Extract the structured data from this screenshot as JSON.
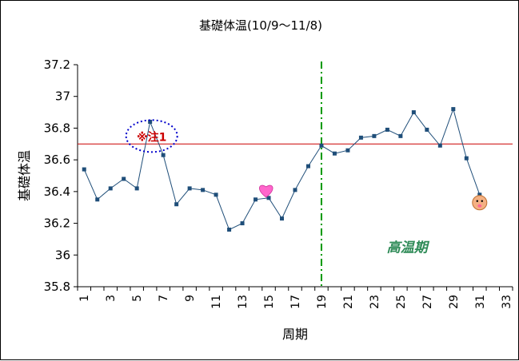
{
  "chart_data": {
    "type": "line",
    "title": "基礎体温(10/9〜11/8)",
    "xlabel": "周期",
    "ylabel": "基礎体温",
    "ylim": [
      35.8,
      37.2
    ],
    "y_ticks": [
      "35.8",
      "36",
      "36.2",
      "36.4",
      "36.6",
      "36.8",
      "37",
      "37.2"
    ],
    "x_ticks": [
      "1",
      "3",
      "5",
      "7",
      "9",
      "11",
      "13",
      "15",
      "17",
      "19",
      "21",
      "23",
      "25",
      "27",
      "29",
      "31",
      "33"
    ],
    "xlim": [
      0.5,
      33.5
    ],
    "grid": false,
    "series": [
      {
        "x": [
          1,
          2,
          3,
          4,
          5,
          6,
          7,
          8,
          9,
          10,
          11,
          12,
          13,
          14,
          15,
          16,
          17,
          18,
          19,
          20,
          21,
          22,
          23,
          24,
          25,
          26,
          27,
          28,
          29,
          30,
          31
        ],
        "values": [
          36.54,
          36.35,
          36.42,
          36.48,
          36.42,
          36.84,
          36.63,
          36.32,
          36.42,
          36.41,
          36.38,
          36.16,
          36.2,
          36.35,
          36.36,
          36.23,
          36.41,
          36.56,
          36.69,
          36.64,
          36.66,
          36.74,
          36.75,
          36.79,
          36.75,
          36.9,
          36.79,
          36.69,
          36.92,
          36.61,
          36.38
        ],
        "color": "#1f4e79"
      }
    ],
    "reference_line": {
      "y": 36.7,
      "color": "#cc0000"
    },
    "vertical_marker": {
      "x": 19,
      "color": "#009900",
      "style": "dash-dot"
    },
    "annotations": [
      {
        "text": "※注1",
        "x": 6,
        "y": 36.73,
        "color": "#cc0000",
        "circle_color": "#0000cc"
      },
      {
        "text": "高温期",
        "x": 25.5,
        "y": 36.02,
        "color": "#2e8b57"
      }
    ],
    "icons": [
      {
        "name": "heart-icon",
        "x": 14.8,
        "y": 36.41,
        "color": "#ff66cc"
      },
      {
        "name": "baby-face-icon",
        "x": 31,
        "y": 36.33,
        "color": "#f4b183"
      }
    ]
  }
}
